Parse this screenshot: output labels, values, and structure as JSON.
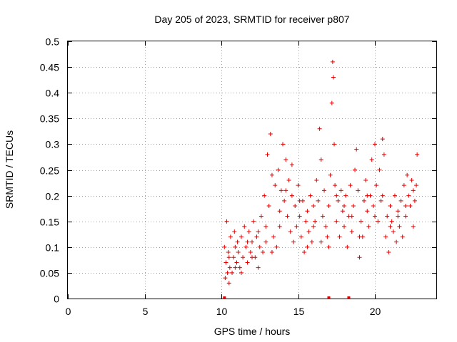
{
  "chart_data": {
    "type": "scatter",
    "title": "Day 205 of 2023, SRMTID for receiver p807",
    "xlabel": "GPS time / hours",
    "ylabel": "SRMTID / TECUs",
    "xlim": [
      0,
      24
    ],
    "ylim": [
      0,
      0.5
    ],
    "x_ticks": [
      0,
      5,
      10,
      15,
      20
    ],
    "x_tick_labels": [
      "0",
      "5",
      "10",
      "15",
      "20"
    ],
    "y_ticks": [
      0,
      0.05,
      0.1,
      0.15,
      0.2,
      0.25,
      0.3,
      0.35,
      0.4,
      0.45,
      0.5
    ],
    "y_tick_labels": [
      "0",
      "0.05",
      "0.1",
      "0.15",
      "0.2",
      "0.25",
      "0.3",
      "0.35",
      "0.4",
      "0.45",
      "0.5"
    ],
    "grid": true,
    "marker": "+",
    "color": "#e00000",
    "series": [
      {
        "name": "SRMTID",
        "points": [
          [
            10.2,
            0.1
          ],
          [
            10.25,
            0.04
          ],
          [
            10.3,
            0.07
          ],
          [
            10.35,
            0.15
          ],
          [
            10.4,
            0.05
          ],
          [
            10.45,
            0.09
          ],
          [
            10.5,
            0.03
          ],
          [
            10.55,
            0.06
          ],
          [
            10.6,
            0.12
          ],
          [
            10.7,
            0.05
          ],
          [
            10.8,
            0.08
          ],
          [
            10.85,
            0.13
          ],
          [
            10.9,
            0.1
          ],
          [
            11.0,
            0.07
          ],
          [
            11.05,
            0.11
          ],
          [
            11.1,
            0.09
          ],
          [
            11.2,
            0.06
          ],
          [
            11.3,
            0.12
          ],
          [
            11.4,
            0.08
          ],
          [
            11.5,
            0.14
          ],
          [
            11.6,
            0.1
          ],
          [
            11.7,
            0.07
          ],
          [
            11.8,
            0.13
          ],
          [
            11.9,
            0.09
          ],
          [
            12.0,
            0.11
          ],
          [
            12.1,
            0.15
          ],
          [
            12.2,
            0.08
          ],
          [
            12.3,
            0.12
          ],
          [
            12.4,
            0.06
          ],
          [
            12.5,
            0.1
          ],
          [
            12.6,
            0.16
          ],
          [
            12.7,
            0.09
          ],
          [
            12.8,
            0.2
          ],
          [
            12.9,
            0.14
          ],
          [
            13.0,
            0.28
          ],
          [
            13.1,
            0.18
          ],
          [
            13.2,
            0.32
          ],
          [
            13.3,
            0.24
          ],
          [
            13.4,
            0.12
          ],
          [
            13.5,
            0.22
          ],
          [
            13.6,
            0.1
          ],
          [
            13.7,
            0.25
          ],
          [
            13.8,
            0.17
          ],
          [
            13.9,
            0.21
          ],
          [
            14.0,
            0.3
          ],
          [
            14.1,
            0.19
          ],
          [
            14.2,
            0.27
          ],
          [
            14.3,
            0.16
          ],
          [
            14.4,
            0.23
          ],
          [
            14.5,
            0.13
          ],
          [
            14.6,
            0.2
          ],
          [
            14.7,
            0.11
          ],
          [
            14.8,
            0.18
          ],
          [
            14.9,
            0.14
          ],
          [
            15.0,
            0.22
          ],
          [
            15.1,
            0.16
          ],
          [
            15.2,
            0.12
          ],
          [
            15.3,
            0.19
          ],
          [
            15.4,
            0.09
          ],
          [
            15.5,
            0.15
          ],
          [
            15.6,
            0.17
          ],
          [
            15.7,
            0.13
          ],
          [
            15.8,
            0.2
          ],
          [
            15.9,
            0.11
          ],
          [
            16.0,
            0.18
          ],
          [
            16.1,
            0.15
          ],
          [
            16.2,
            0.23
          ],
          [
            16.3,
            0.19
          ],
          [
            16.4,
            0.33
          ],
          [
            16.5,
            0.27
          ],
          [
            16.6,
            0.16
          ],
          [
            16.7,
            0.21
          ],
          [
            16.8,
            0.14
          ],
          [
            16.9,
            0.12
          ],
          [
            17.0,
            0.18
          ],
          [
            17.1,
            0.24
          ],
          [
            17.2,
            0.38
          ],
          [
            17.25,
            0.46
          ],
          [
            17.3,
            0.43
          ],
          [
            17.35,
            0.3
          ],
          [
            17.4,
            0.22
          ],
          [
            17.5,
            0.15
          ],
          [
            17.6,
            0.19
          ],
          [
            17.7,
            0.12
          ],
          [
            17.8,
            0.21
          ],
          [
            17.9,
            0.17
          ],
          [
            18.0,
            0.14
          ],
          [
            18.1,
            0.2
          ],
          [
            18.2,
            0.1
          ],
          [
            18.3,
            0.16
          ],
          [
            18.4,
            0.22
          ],
          [
            18.5,
            0.13
          ],
          [
            18.6,
            0.18
          ],
          [
            18.7,
            0.25
          ],
          [
            18.8,
            0.29
          ],
          [
            18.9,
            0.21
          ],
          [
            19.0,
            0.08
          ],
          [
            19.1,
            0.15
          ],
          [
            19.2,
            0.12
          ],
          [
            19.3,
            0.19
          ],
          [
            19.4,
            0.23
          ],
          [
            19.5,
            0.17
          ],
          [
            19.6,
            0.14
          ],
          [
            19.7,
            0.2
          ],
          [
            19.8,
            0.27
          ],
          [
            19.9,
            0.18
          ],
          [
            20.0,
            0.3
          ],
          [
            20.1,
            0.22
          ],
          [
            20.2,
            0.15
          ],
          [
            20.3,
            0.25
          ],
          [
            20.4,
            0.19
          ],
          [
            20.5,
            0.31
          ],
          [
            20.6,
            0.28
          ],
          [
            20.7,
            0.12
          ],
          [
            20.8,
            0.16
          ],
          [
            20.9,
            0.09
          ],
          [
            21.0,
            0.18
          ],
          [
            21.1,
            0.15
          ],
          [
            21.2,
            0.13
          ],
          [
            21.3,
            0.2
          ],
          [
            21.4,
            0.11
          ],
          [
            21.5,
            0.17
          ],
          [
            21.6,
            0.14
          ],
          [
            21.7,
            0.19
          ],
          [
            21.8,
            0.12
          ],
          [
            21.9,
            0.22
          ],
          [
            22.0,
            0.16
          ],
          [
            22.1,
            0.24
          ],
          [
            22.2,
            0.2
          ],
          [
            22.3,
            0.18
          ],
          [
            22.4,
            0.23
          ],
          [
            22.5,
            0.21
          ],
          [
            22.6,
            0.19
          ],
          [
            22.7,
            0.22
          ],
          [
            22.75,
            0.28
          ],
          [
            10.5,
            0.08
          ],
          [
            10.9,
            0.06
          ],
          [
            11.3,
            0.05
          ],
          [
            11.7,
            0.11
          ],
          [
            12.0,
            0.08
          ],
          [
            12.4,
            0.13
          ],
          [
            12.9,
            0.11
          ],
          [
            13.3,
            0.09
          ],
          [
            13.8,
            0.14
          ],
          [
            14.2,
            0.21
          ],
          [
            14.6,
            0.26
          ],
          [
            15.1,
            0.19
          ],
          [
            15.6,
            0.1
          ],
          [
            16.0,
            0.14
          ],
          [
            16.5,
            0.11
          ],
          [
            17.0,
            0.1
          ],
          [
            17.5,
            0.2
          ],
          [
            18.0,
            0.18
          ],
          [
            18.5,
            0.16
          ],
          [
            19.0,
            0.12
          ],
          [
            19.5,
            0.2
          ],
          [
            20.0,
            0.16
          ],
          [
            20.5,
            0.2
          ],
          [
            21.0,
            0.14
          ],
          [
            21.5,
            0.16
          ],
          [
            22.0,
            0.18
          ],
          [
            22.5,
            0.14
          ]
        ]
      }
    ],
    "x_axis_markers": [
      10.2,
      17.0,
      18.3
    ]
  }
}
